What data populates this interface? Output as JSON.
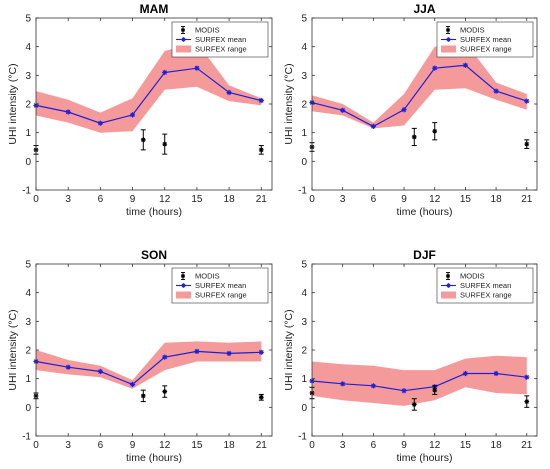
{
  "chart_data": [
    {
      "type": "line",
      "title": "MAM",
      "xlabel": "time (hours)",
      "ylabel": "UHI intensity (°C)",
      "xlim": [
        0,
        22
      ],
      "ylim": [
        -1,
        5
      ],
      "xticks": [
        0,
        3,
        6,
        9,
        12,
        15,
        18,
        21
      ],
      "yticks": [
        -1,
        0,
        1,
        2,
        3,
        4,
        5
      ],
      "legend": [
        "MODIS",
        "SURFEX mean",
        "SURFEX range"
      ],
      "legend_position": "top-right",
      "series": [
        {
          "name": "SURFEX mean",
          "x": [
            0,
            3,
            6,
            9,
            12,
            15,
            18,
            21
          ],
          "y": [
            1.95,
            1.72,
            1.33,
            1.62,
            3.1,
            3.25,
            2.4,
            2.12
          ]
        },
        {
          "name": "SURFEX range",
          "x": [
            0,
            3,
            6,
            9,
            12,
            15,
            18,
            21
          ],
          "low": [
            1.6,
            1.35,
            1.0,
            1.05,
            2.5,
            2.6,
            2.1,
            1.95
          ],
          "high": [
            2.45,
            2.15,
            1.7,
            2.2,
            3.85,
            4.15,
            2.65,
            2.2
          ]
        },
        {
          "name": "MODIS",
          "x": [
            0,
            10,
            12,
            21
          ],
          "y": [
            0.4,
            0.75,
            0.6,
            0.4
          ],
          "err": [
            0.15,
            0.35,
            0.35,
            0.15
          ]
        }
      ]
    },
    {
      "type": "line",
      "title": "JJA",
      "xlabel": "time (hours)",
      "ylabel": "UHI intensity (°C)",
      "xlim": [
        0,
        22
      ],
      "ylim": [
        -1,
        5
      ],
      "xticks": [
        0,
        3,
        6,
        9,
        12,
        15,
        18,
        21
      ],
      "yticks": [
        -1,
        0,
        1,
        2,
        3,
        4,
        5
      ],
      "legend": [
        "MODIS",
        "SURFEX mean",
        "SURFEX range"
      ],
      "legend_position": "top-right",
      "series": [
        {
          "name": "SURFEX mean",
          "x": [
            0,
            3,
            6,
            9,
            12,
            15,
            18,
            21
          ],
          "y": [
            2.05,
            1.78,
            1.22,
            1.8,
            3.25,
            3.35,
            2.45,
            2.1
          ]
        },
        {
          "name": "SURFEX range",
          "x": [
            0,
            3,
            6,
            9,
            12,
            15,
            18,
            21
          ],
          "low": [
            1.75,
            1.6,
            1.15,
            1.25,
            2.5,
            2.55,
            2.15,
            1.8
          ],
          "high": [
            2.3,
            2.0,
            1.35,
            2.35,
            4.0,
            4.15,
            2.75,
            2.35
          ]
        },
        {
          "name": "MODIS",
          "x": [
            0,
            10,
            12,
            21
          ],
          "y": [
            0.5,
            0.85,
            1.05,
            0.6
          ],
          "err": [
            0.15,
            0.3,
            0.3,
            0.15
          ]
        }
      ]
    },
    {
      "type": "line",
      "title": "SON",
      "xlabel": "time (hours)",
      "ylabel": "UHI intensity (°C)",
      "xlim": [
        0,
        22
      ],
      "ylim": [
        -1,
        5
      ],
      "xticks": [
        0,
        3,
        6,
        9,
        12,
        15,
        18,
        21
      ],
      "yticks": [
        -1,
        0,
        1,
        2,
        3,
        4,
        5
      ],
      "legend": [
        "MODIS",
        "SURFEX mean",
        "SURFEX range"
      ],
      "legend_position": "top-right",
      "series": [
        {
          "name": "SURFEX mean",
          "x": [
            0,
            3,
            6,
            9,
            12,
            15,
            18,
            21
          ],
          "y": [
            1.6,
            1.4,
            1.25,
            0.8,
            1.75,
            1.95,
            1.88,
            1.92
          ]
        },
        {
          "name": "SURFEX range",
          "x": [
            0,
            3,
            6,
            9,
            12,
            15,
            18,
            21
          ],
          "low": [
            1.3,
            1.15,
            1.05,
            0.65,
            1.3,
            1.6,
            1.6,
            1.6
          ],
          "high": [
            2.0,
            1.65,
            1.45,
            0.95,
            2.25,
            2.3,
            2.25,
            2.3
          ]
        },
        {
          "name": "MODIS",
          "x": [
            0,
            10,
            12,
            21
          ],
          "y": [
            0.4,
            0.4,
            0.55,
            0.35
          ],
          "err": [
            0.1,
            0.2,
            0.2,
            0.1
          ]
        }
      ]
    },
    {
      "type": "line",
      "title": "DJF",
      "xlabel": "time (hours)",
      "ylabel": "UHI intensity (°C)",
      "xlim": [
        0,
        22
      ],
      "ylim": [
        -1,
        5
      ],
      "xticks": [
        0,
        3,
        6,
        9,
        12,
        15,
        18,
        21
      ],
      "yticks": [
        -1,
        0,
        1,
        2,
        3,
        4,
        5
      ],
      "legend": [
        "MODIS",
        "SURFEX mean",
        "SURFEX range"
      ],
      "legend_position": "top-right",
      "series": [
        {
          "name": "SURFEX mean",
          "x": [
            0,
            3,
            6,
            9,
            12,
            15,
            18,
            21
          ],
          "y": [
            0.92,
            0.82,
            0.75,
            0.58,
            0.72,
            1.18,
            1.18,
            1.05
          ]
        },
        {
          "name": "SURFEX range",
          "x": [
            0,
            3,
            6,
            9,
            12,
            15,
            18,
            21
          ],
          "low": [
            0.4,
            0.25,
            0.15,
            0.05,
            0.25,
            0.7,
            0.5,
            0.45
          ],
          "high": [
            1.6,
            1.5,
            1.45,
            1.3,
            1.3,
            1.7,
            1.8,
            1.75
          ]
        },
        {
          "name": "MODIS",
          "x": [
            0,
            10,
            12,
            21
          ],
          "y": [
            0.5,
            0.1,
            0.6,
            0.2
          ],
          "err": [
            0.2,
            0.2,
            0.15,
            0.2
          ]
        }
      ]
    }
  ],
  "colors": {
    "mean": "#1f1fd6",
    "range": "#f59a9a",
    "modis": "#000000",
    "axis": "#333333"
  }
}
